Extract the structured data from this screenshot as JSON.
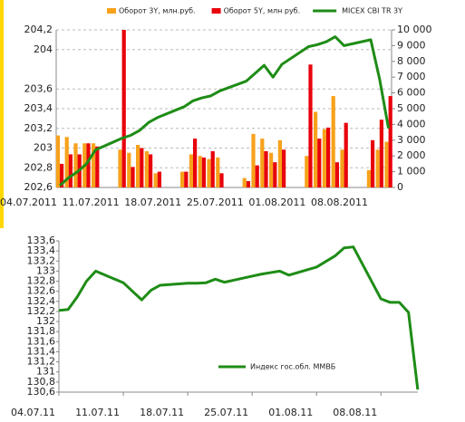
{
  "chart_data": [
    {
      "type": "combo",
      "categories": [
        "04.07.2011",
        null,
        null,
        null,
        null,
        "11.07.2011",
        null,
        null,
        null,
        null,
        "18.07.2011",
        null,
        null,
        null,
        null,
        "25.07.2011",
        null,
        null,
        null,
        null,
        "01.08.2011",
        null,
        null,
        null,
        null,
        "08.08.2011",
        null,
        null
      ],
      "series": [
        {
          "name": "Оборот 3Y, млн.руб.",
          "type": "bar",
          "axis": "y2",
          "color": "#f7a21b",
          "values": [
            3300,
            3200,
            2800,
            2800,
            2800,
            2400,
            2200,
            2700,
            2300,
            900,
            1000,
            2100,
            2000,
            1800,
            1900,
            600,
            3400,
            3100,
            2200,
            3000,
            2000,
            4800,
            3700,
            5800,
            2400,
            1100,
            2400,
            2900
          ]
        },
        {
          "name": "Оборот 5Y, млн руб.",
          "type": "bar",
          "axis": "y2",
          "color": "#e8000b",
          "values": [
            1500,
            2100,
            2100,
            2800,
            2600,
            10000,
            1300,
            2500,
            2100,
            1000,
            1000,
            3100,
            1900,
            2300,
            900,
            400,
            1400,
            2300,
            1600,
            2400,
            7800,
            3100,
            3800,
            1600,
            4100,
            3000,
            4300,
            5800
          ]
        },
        {
          "name": "MICEX CBI TR 3Y",
          "type": "line",
          "color": "#1e8c16",
          "values": [
            202.62,
            202.7,
            202.76,
            202.84,
            202.98,
            203.1,
            203.13,
            203.18,
            203.26,
            203.31,
            203.42,
            203.48,
            203.51,
            203.53,
            203.58,
            203.68,
            203.76,
            203.84,
            203.72,
            203.85,
            204.03,
            204.05,
            204.08,
            204.13,
            204.04,
            204.1,
            203.7,
            203.2
          ]
        }
      ],
      "ylim": [
        202.6,
        204.2
      ],
      "yticks": [
        {
          "value": 202.6,
          "label": "202,6"
        },
        {
          "value": 202.8,
          "label": "202,8"
        },
        203,
        {
          "value": 203.2,
          "label": "203,2"
        },
        {
          "value": 203.4,
          "label": "203,4"
        },
        {
          "value": 203.6,
          "label": "203,6"
        },
        204,
        {
          "value": 204.2,
          "label": "204,2"
        }
      ],
      "y2lim": [
        0,
        10000
      ],
      "y2ticks": [
        0,
        {
          "value": 1000,
          "label": "1 000"
        },
        {
          "value": 2000,
          "label": "2 000"
        },
        {
          "value": 3000,
          "label": "3 000"
        },
        {
          "value": 4000,
          "label": "4 000"
        },
        {
          "value": 5000,
          "label": "5 000"
        },
        {
          "value": 6000,
          "label": "6 000"
        },
        {
          "value": 7000,
          "label": "7 000"
        },
        {
          "value": 8000,
          "label": "8 000"
        },
        {
          "value": 9000,
          "label": "9 000"
        },
        {
          "value": 10000,
          "label": "10 000"
        }
      ],
      "grid": true,
      "legend": "top"
    },
    {
      "type": "line",
      "categories": [
        "04.07.11",
        null,
        null,
        null,
        null,
        "11.07.11",
        null,
        null,
        null,
        null,
        "18.07.11",
        null,
        null,
        null,
        null,
        "25.07.11",
        null,
        null,
        null,
        null,
        "01.08.11",
        null,
        null,
        null,
        null,
        "08.08.11",
        null,
        null,
        null,
        null
      ],
      "series": [
        {
          "name": "Индекс гос.обл. ММВБ",
          "color": "#1e8c16",
          "values": [
            132.22,
            132.24,
            132.49,
            132.8,
            133.0,
            132.77,
            132.6,
            132.43,
            132.62,
            132.72,
            132.76,
            132.76,
            132.77,
            132.84,
            132.78,
            132.9,
            132.94,
            132.97,
            133.0,
            132.92,
            133.08,
            133.19,
            133.3,
            133.46,
            133.48,
            132.45,
            132.38,
            132.38,
            132.18,
            130.65
          ]
        }
      ],
      "ylim": [
        130.6,
        133.6
      ],
      "yticks": [
        {
          "value": 130.6,
          "label": "130,6"
        },
        {
          "value": 130.8,
          "label": "130,8"
        },
        131,
        {
          "value": 131.2,
          "label": "131,2"
        },
        {
          "value": 131.4,
          "label": "131,4"
        },
        {
          "value": 131.6,
          "label": "131,6"
        },
        {
          "value": 131.8,
          "label": "131,8"
        },
        132,
        {
          "value": 132.2,
          "label": "132,2"
        },
        {
          "value": 132.4,
          "label": "132,4"
        },
        {
          "value": 132.6,
          "label": "132,6"
        },
        {
          "value": 132.8,
          "label": "132,8"
        },
        133,
        {
          "value": 133.2,
          "label": "133,2"
        },
        {
          "value": 133.4,
          "label": "133,4"
        },
        {
          "value": 133.6,
          "label": "133,6"
        }
      ],
      "grid": false,
      "legend": "inside"
    }
  ]
}
